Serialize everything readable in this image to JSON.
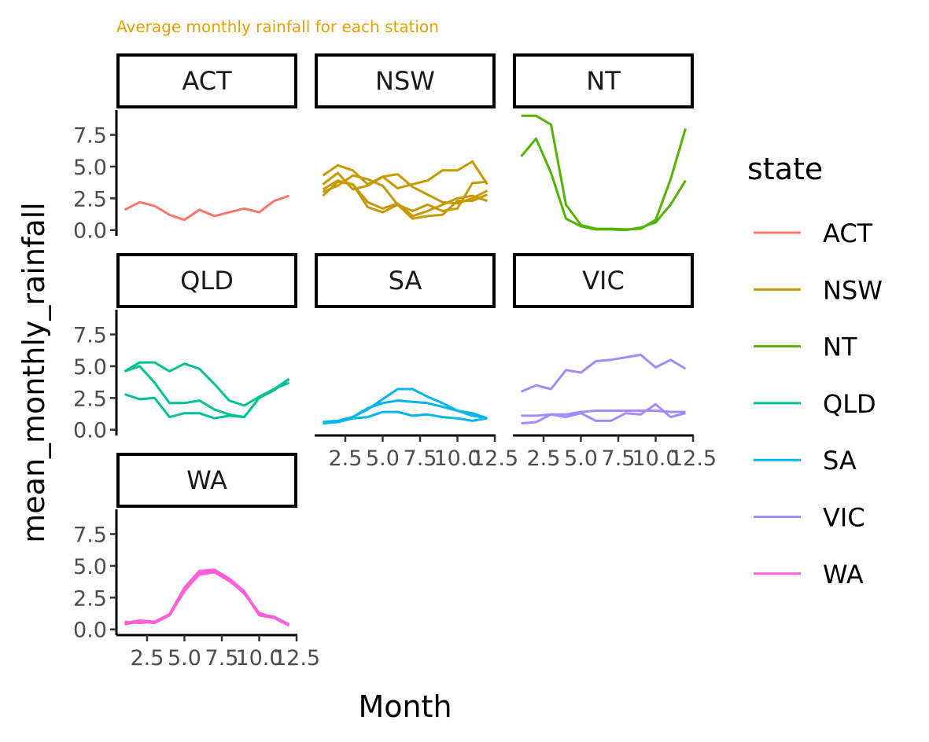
{
  "subtitle": "Average monthly rainfall for each station",
  "colors": {
    "subtitle": "#E69F00",
    "ACT": "#F8766D",
    "NSW": "#C49A00",
    "NT": "#53B400",
    "QLD": "#00C094",
    "SA": "#00B6EB",
    "VIC": "#A58AFF",
    "WA": "#FB61D7"
  },
  "chart_data": {
    "type": "line",
    "title": "",
    "subtitle": "Average monthly rainfall for each station",
    "xlabel": "Month",
    "ylabel": "mean_monthly_rainfall",
    "xlim": [
      0.45,
      12.55
    ],
    "ylim": [
      -0.45,
      9.45
    ],
    "x_ticks": [
      2.5,
      5.0,
      7.5,
      10.0,
      12.5
    ],
    "x_tick_labels": [
      "2.5",
      "5.0",
      "7.5",
      "10.0",
      "12.5"
    ],
    "y_ticks": [
      0.0,
      2.5,
      5.0,
      7.5
    ],
    "y_tick_labels": [
      "0.0",
      "2.5",
      "5.0",
      "7.5"
    ],
    "x": [
      1,
      2,
      3,
      4,
      5,
      6,
      7,
      8,
      9,
      10,
      11,
      12
    ],
    "legend": {
      "title": "state",
      "position": "right"
    },
    "grid": false,
    "facets": [
      {
        "state": "ACT",
        "series": [
          {
            "values": [
              1.6,
              2.2,
              1.9,
              1.2,
              0.8,
              1.6,
              1.1,
              1.4,
              1.7,
              1.4,
              2.3,
              2.7
            ]
          }
        ]
      },
      {
        "state": "NSW",
        "series": [
          {
            "values": [
              4.3,
              5.1,
              4.7,
              3.6,
              4.2,
              3.3,
              3.6,
              3.9,
              4.7,
              4.7,
              5.4,
              3.6
            ]
          },
          {
            "values": [
              3.6,
              4.5,
              3.2,
              3.5,
              4.2,
              4.4,
              3.4,
              2.8,
              2.2,
              2.1,
              2.5,
              3.1
            ]
          },
          {
            "values": [
              3.2,
              3.9,
              3.6,
              2.2,
              1.7,
              2.1,
              1.1,
              1.5,
              2.0,
              2.5,
              2.7,
              2.3
            ]
          },
          {
            "values": [
              2.7,
              3.8,
              3.6,
              1.8,
              1.4,
              2.0,
              0.9,
              1.1,
              1.2,
              2.3,
              2.3,
              2.8
            ]
          },
          {
            "values": [
              3.0,
              3.5,
              4.3,
              4.0,
              3.5,
              2.0,
              1.5,
              2.0,
              1.5,
              1.7,
              3.7,
              3.8
            ]
          }
        ]
      },
      {
        "state": "NT",
        "series": [
          {
            "values": [
              9.0,
              9.0,
              8.3,
              2.0,
              0.4,
              0.1,
              0.1,
              0.05,
              0.1,
              0.8,
              4.0,
              8.0
            ]
          },
          {
            "values": [
              5.8,
              7.2,
              4.5,
              0.9,
              0.3,
              0.05,
              0.05,
              0.0,
              0.2,
              0.6,
              2.0,
              3.9
            ]
          }
        ]
      },
      {
        "state": "QLD",
        "series": [
          {
            "values": [
              4.6,
              5.3,
              5.3,
              4.6,
              5.2,
              4.8,
              3.6,
              2.3,
              1.9,
              2.6,
              3.2,
              3.7
            ]
          },
          {
            "values": [
              4.6,
              5.0,
              3.7,
              2.1,
              2.1,
              2.3,
              1.6,
              1.2,
              1.0,
              2.5,
              3.1,
              4.0
            ]
          },
          {
            "values": [
              2.8,
              2.4,
              2.5,
              1.0,
              1.3,
              1.3,
              0.9,
              1.1,
              1.0,
              2.5,
              3.2,
              4.0
            ]
          }
        ]
      },
      {
        "state": "SA",
        "series": [
          {
            "values": [
              0.6,
              0.7,
              1.0,
              1.6,
              2.4,
              3.2,
              3.2,
              2.6,
              2.1,
              1.5,
              1.1,
              0.9
            ]
          },
          {
            "values": [
              0.6,
              0.7,
              1.0,
              1.7,
              2.1,
              2.3,
              2.2,
              2.1,
              1.8,
              1.5,
              1.3,
              0.9
            ]
          },
          {
            "values": [
              0.5,
              0.6,
              0.9,
              1.0,
              1.4,
              1.4,
              1.1,
              1.2,
              1.0,
              0.9,
              0.7,
              0.9
            ]
          }
        ]
      },
      {
        "state": "VIC",
        "series": [
          {
            "values": [
              3.0,
              3.5,
              3.2,
              4.7,
              4.5,
              5.4,
              5.5,
              5.7,
              5.9,
              4.9,
              5.5,
              4.8
            ]
          },
          {
            "values": [
              1.1,
              1.1,
              1.2,
              1.2,
              1.4,
              1.5,
              1.5,
              1.5,
              1.5,
              1.5,
              1.4,
              1.4
            ]
          },
          {
            "values": [
              0.5,
              0.6,
              1.2,
              1.0,
              1.3,
              0.7,
              0.7,
              1.3,
              1.2,
              2.0,
              1.0,
              1.3
            ]
          }
        ]
      },
      {
        "state": "WA",
        "series": [
          {
            "values": [
              0.5,
              0.7,
              0.6,
              1.1,
              3.0,
              4.4,
              4.6,
              3.9,
              2.8,
              1.3,
              0.9,
              0.3
            ]
          },
          {
            "values": [
              0.6,
              0.5,
              0.6,
              1.2,
              3.3,
              4.6,
              4.7,
              4.0,
              3.0,
              1.2,
              1.0,
              0.4
            ]
          },
          {
            "values": [
              0.4,
              0.6,
              0.5,
              1.1,
              3.1,
              4.3,
              4.5,
              3.8,
              2.9,
              1.1,
              0.9,
              0.3
            ]
          }
        ]
      }
    ]
  }
}
